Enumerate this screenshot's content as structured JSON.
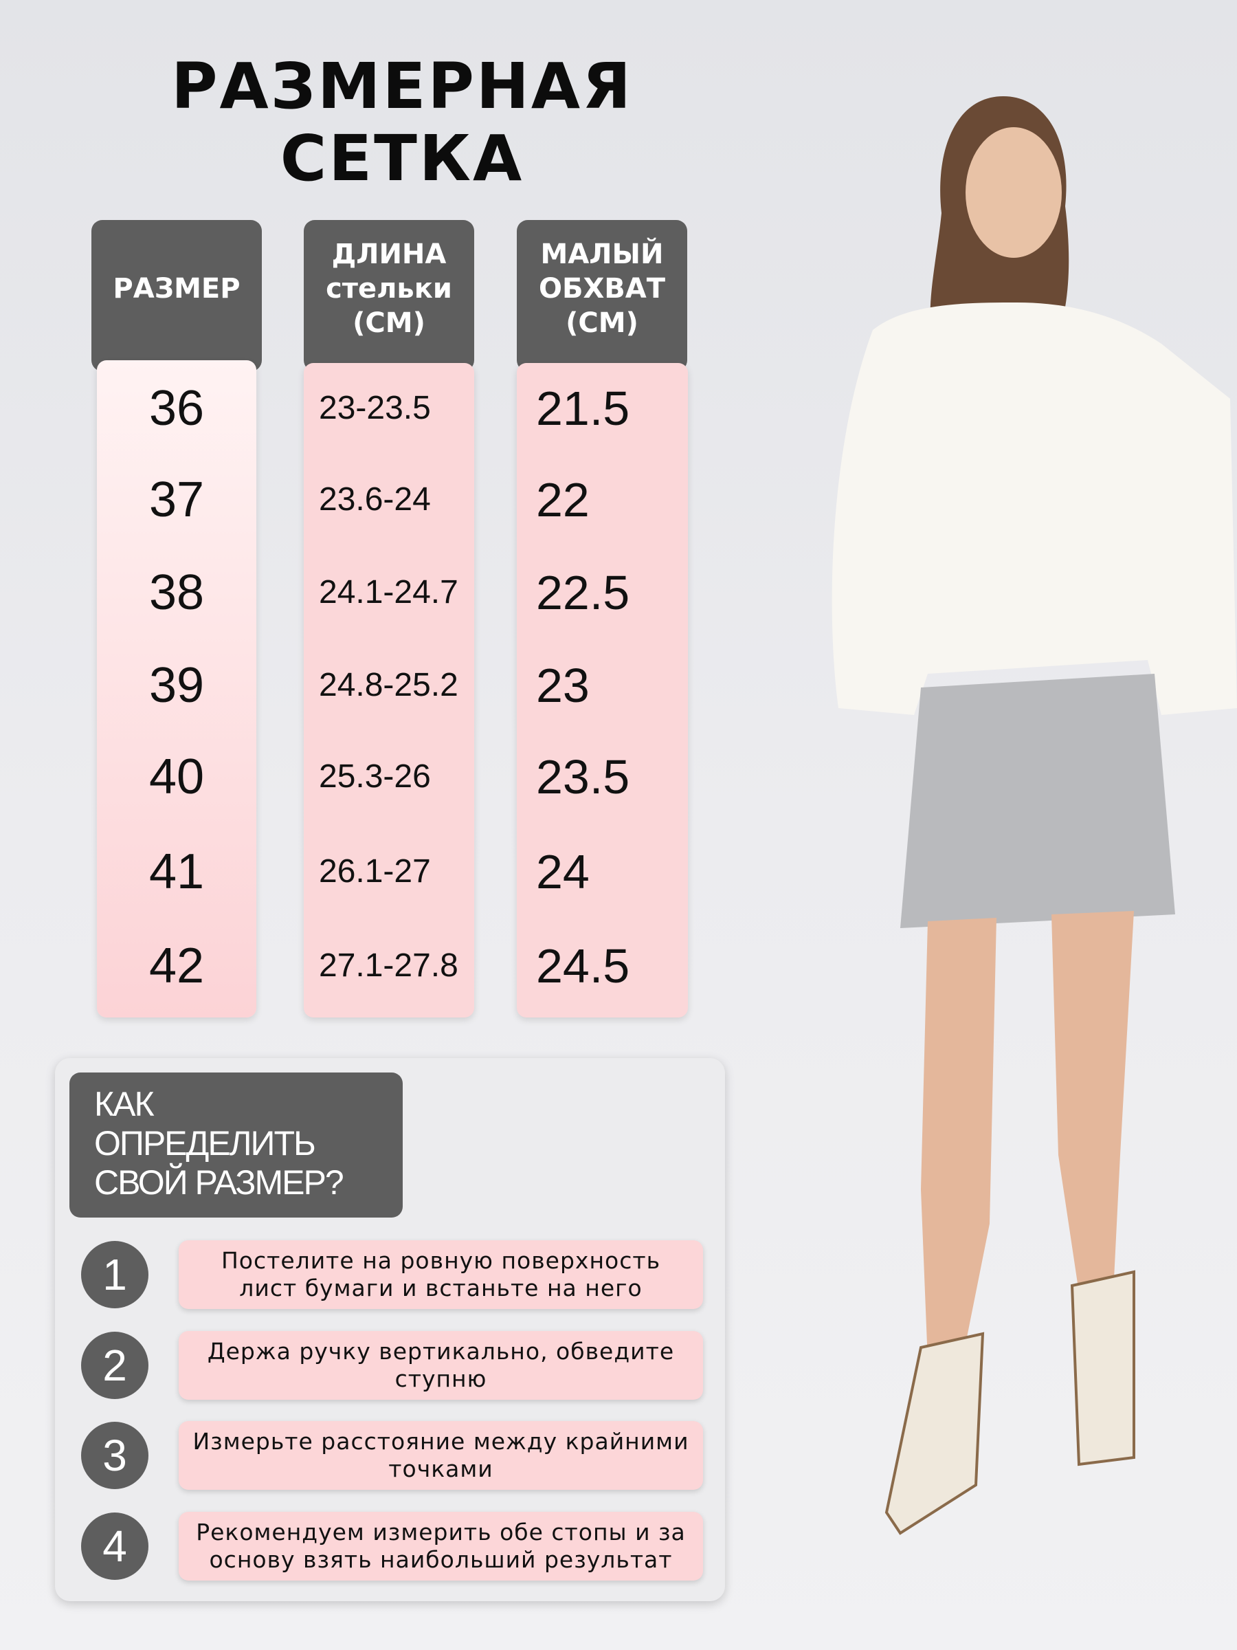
{
  "title": {
    "line1": "РАЗМЕРНАЯ",
    "line2": "СЕТКА"
  },
  "table": {
    "columns": [
      {
        "header": [
          "РАЗМЕР"
        ]
      },
      {
        "header": [
          "ДЛИНА",
          "стельки",
          "(СМ)"
        ]
      },
      {
        "header": [
          "МАЛЫЙ",
          "ОБХВАТ",
          "(СМ)"
        ]
      }
    ],
    "rows": [
      {
        "size": "36",
        "insole": "23-23.5",
        "girth": "21.5"
      },
      {
        "size": "37",
        "insole": "23.6-24",
        "girth": "22"
      },
      {
        "size": "38",
        "insole": "24.1-24.7",
        "girth": "22.5"
      },
      {
        "size": "39",
        "insole": "24.8-25.2",
        "girth": "23"
      },
      {
        "size": "40",
        "insole": "25.3-26",
        "girth": "23.5"
      },
      {
        "size": "41",
        "insole": "26.1-27",
        "girth": "24"
      },
      {
        "size": "42",
        "insole": "27.1-27.8",
        "girth": "24.5"
      }
    ]
  },
  "howto": {
    "title": [
      "КАК",
      "ОПРЕДЕЛИТЬ",
      "СВОЙ РАЗМЕР?"
    ],
    "steps": [
      {
        "num": "1",
        "text": "Постелите на ровную поверхность лист бумаги и встаньте на него"
      },
      {
        "num": "2",
        "text": "Держа ручку вертикально, обведите ступню"
      },
      {
        "num": "3",
        "text": "Измерьте расстояние между крайними точками"
      },
      {
        "num": "4",
        "text": "Рекомендуем измерить обе стопы и за основу взять наибольший результат"
      }
    ]
  },
  "colors": {
    "header_bg": "#5e5e5e",
    "cell_pink": "#fcd6d8",
    "background": "#e9e9ec"
  }
}
